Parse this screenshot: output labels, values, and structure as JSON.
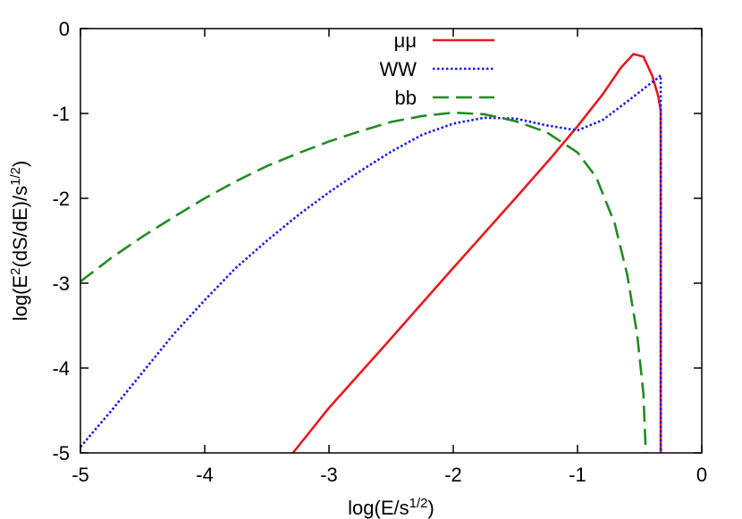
{
  "chart_data": {
    "type": "line",
    "title": "",
    "xlabel": {
      "base": "log(E/s",
      "sup": "1/2",
      "tail": ")"
    },
    "ylabel": {
      "base": "log(E",
      "sup1": "2",
      "mid": "(dS/dE)/s",
      "sup2": "1/2",
      "tail": ")"
    },
    "xlim": [
      -5,
      0
    ],
    "ylim": [
      -5,
      0
    ],
    "xticks": [
      -5,
      -4,
      -3,
      -2,
      -1,
      0
    ],
    "yticks": [
      -5,
      -4,
      -3,
      -2,
      -1,
      0
    ],
    "xtick_labels": [
      "-5",
      "-4",
      "-3",
      "-2",
      "-1",
      "0"
    ],
    "ytick_labels": [
      "-5",
      "-4",
      "-3",
      "-2",
      "-1",
      "0"
    ],
    "grid": false,
    "legend_position": "top-right",
    "series": [
      {
        "name": "μμ",
        "color": "#e8191e",
        "style": "solid",
        "x": [
          -3.29,
          -3.0,
          -2.5,
          -2.0,
          -1.5,
          -1.2,
          -1.0,
          -0.8,
          -0.65,
          -0.55,
          -0.47,
          -0.4,
          -0.35,
          -0.33,
          -0.33
        ],
        "y": [
          -5.0,
          -4.47,
          -3.65,
          -2.82,
          -2.0,
          -1.5,
          -1.15,
          -0.78,
          -0.46,
          -0.3,
          -0.33,
          -0.55,
          -0.8,
          -0.97,
          -5.0
        ]
      },
      {
        "name": "WW",
        "color": "#1a1ae8",
        "style": "dotted",
        "x": [
          -5.0,
          -4.75,
          -4.5,
          -4.25,
          -4.0,
          -3.75,
          -3.5,
          -3.25,
          -3.0,
          -2.75,
          -2.5,
          -2.25,
          -2.0,
          -1.75,
          -1.5,
          -1.25,
          -1.0,
          -0.8,
          -0.6,
          -0.45,
          -0.37,
          -0.33,
          -0.33
        ],
        "y": [
          -4.93,
          -4.5,
          -4.05,
          -3.6,
          -3.2,
          -2.82,
          -2.5,
          -2.2,
          -1.93,
          -1.68,
          -1.45,
          -1.25,
          -1.12,
          -1.05,
          -1.06,
          -1.14,
          -1.2,
          -1.08,
          -0.86,
          -0.69,
          -0.6,
          -0.55,
          -5.0
        ]
      },
      {
        "name": "bb",
        "color": "#228b22",
        "style": "dashed",
        "x": [
          -5.0,
          -4.75,
          -4.5,
          -4.25,
          -4.0,
          -3.75,
          -3.5,
          -3.25,
          -3.0,
          -2.75,
          -2.5,
          -2.25,
          -2.0,
          -1.75,
          -1.5,
          -1.25,
          -1.0,
          -0.85,
          -0.7,
          -0.6,
          -0.52,
          -0.47,
          -0.45
        ],
        "y": [
          -2.98,
          -2.7,
          -2.45,
          -2.22,
          -2.0,
          -1.8,
          -1.62,
          -1.47,
          -1.33,
          -1.21,
          -1.1,
          -1.03,
          -0.99,
          -1.01,
          -1.09,
          -1.22,
          -1.46,
          -1.75,
          -2.3,
          -2.9,
          -3.6,
          -4.3,
          -5.0
        ]
      }
    ]
  }
}
